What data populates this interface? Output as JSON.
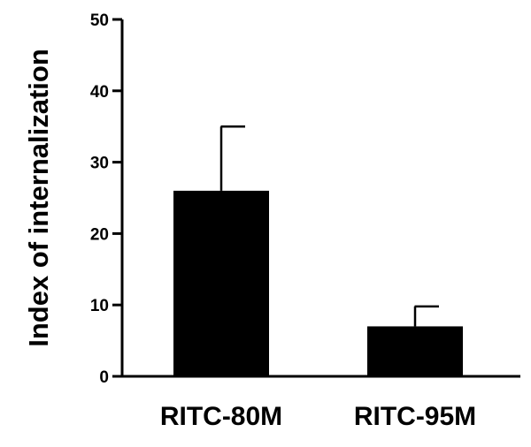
{
  "chart_data": {
    "type": "bar",
    "categories": [
      "RITC-80M",
      "RITC-95M"
    ],
    "values": [
      26,
      7
    ],
    "error_upper": [
      35,
      9.8
    ],
    "ylabel": "Index of internalization",
    "xlabel": "",
    "ylim": [
      0,
      50
    ],
    "yticks": [
      0,
      10,
      20,
      30,
      40,
      50
    ],
    "grid": false,
    "bar_color": "#000000"
  }
}
